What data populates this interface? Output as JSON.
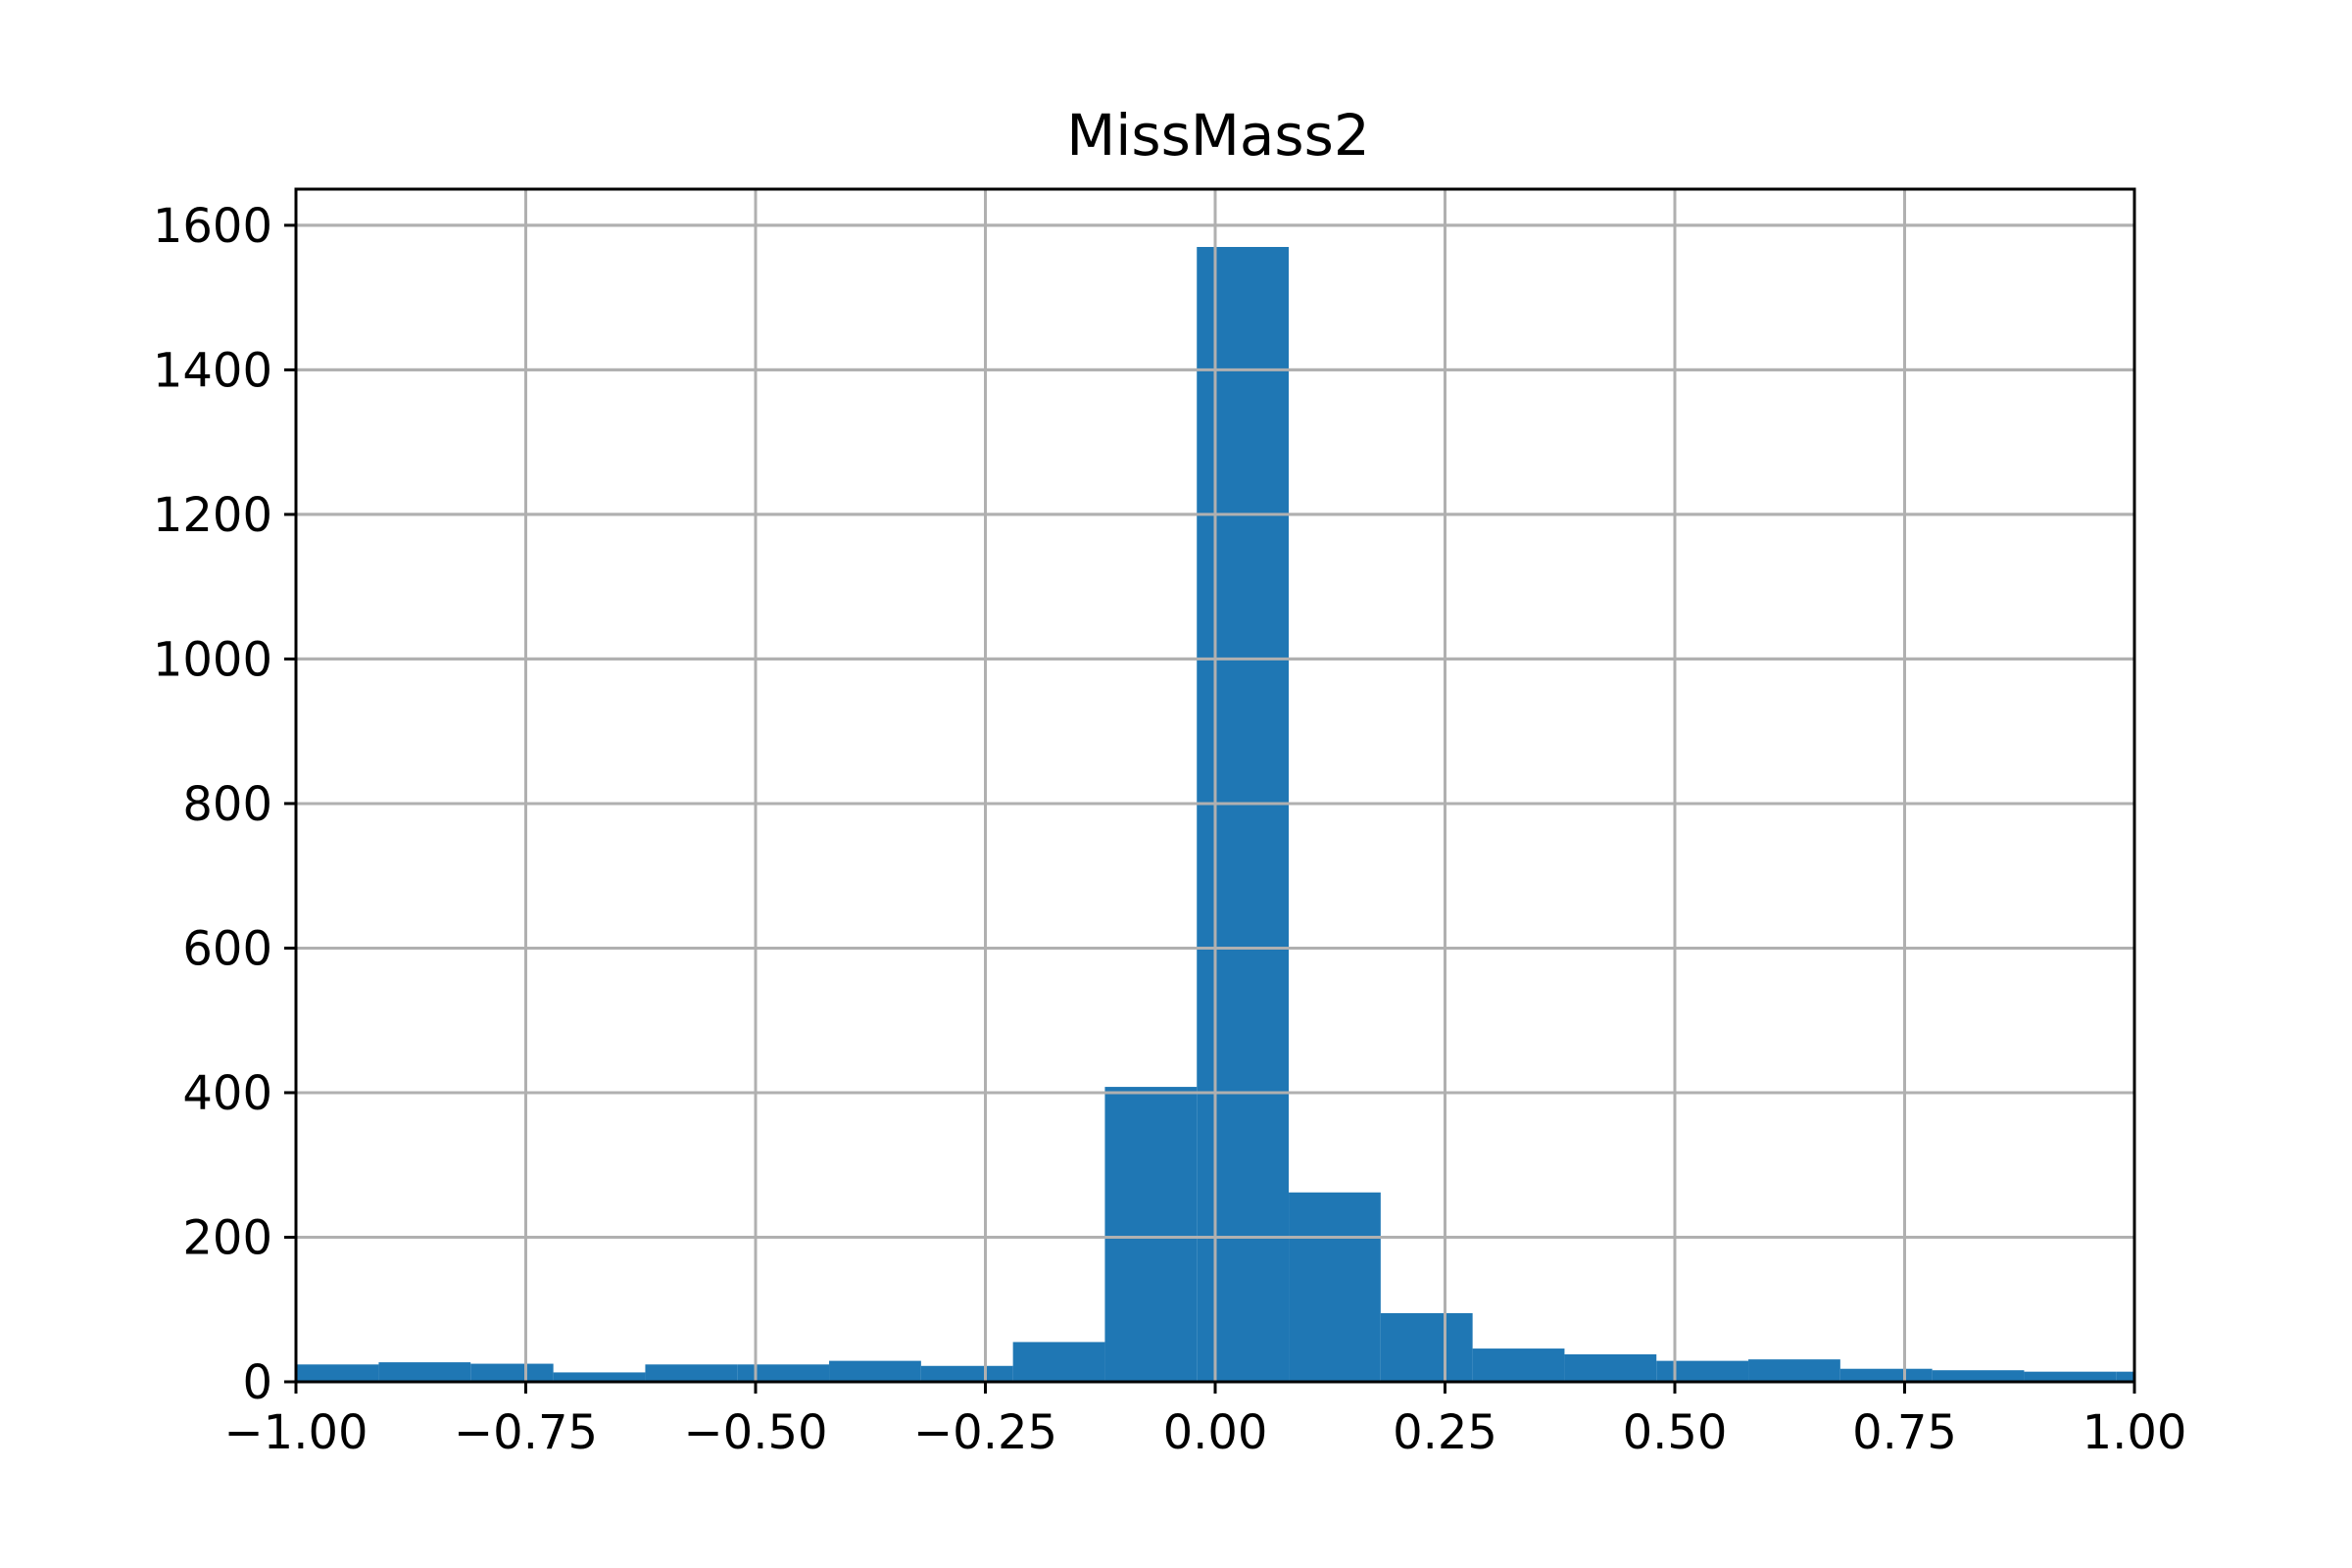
{
  "chart_data": {
    "type": "bar",
    "title": "MissMass2",
    "xlabel": "",
    "ylabel": "",
    "xlim": [
      -1.0,
      1.0
    ],
    "ylim": [
      0,
      1650
    ],
    "grid": true,
    "bar_color": "#1f77b4",
    "x_ticks": [
      -1.0,
      -0.75,
      -0.5,
      -0.25,
      0.0,
      0.25,
      0.5,
      0.75,
      1.0
    ],
    "x_tick_labels": [
      "−1.00",
      "−0.75",
      "−0.50",
      "−0.25",
      "0.00",
      "0.25",
      "0.50",
      "0.75",
      "1.00"
    ],
    "y_ticks": [
      0,
      200,
      400,
      600,
      800,
      1000,
      1200,
      1400,
      1600
    ],
    "y_tick_labels": [
      "0",
      "200",
      "400",
      "600",
      "800",
      "1000",
      "1200",
      "1400",
      "1600"
    ],
    "bins": [
      {
        "x0": -1.0,
        "x1": -0.91,
        "value": 24
      },
      {
        "x0": -0.91,
        "x1": -0.81,
        "value": 27
      },
      {
        "x0": -0.81,
        "x1": -0.72,
        "value": 25
      },
      {
        "x0": -0.72,
        "x1": -0.62,
        "value": 13
      },
      {
        "x0": -0.62,
        "x1": -0.52,
        "value": 24
      },
      {
        "x0": -0.52,
        "x1": -0.42,
        "value": 24
      },
      {
        "x0": -0.42,
        "x1": -0.32,
        "value": 29
      },
      {
        "x0": -0.32,
        "x1": -0.22,
        "value": 22
      },
      {
        "x0": -0.22,
        "x1": -0.12,
        "value": 55
      },
      {
        "x0": -0.12,
        "x1": -0.02,
        "value": 408
      },
      {
        "x0": -0.02,
        "x1": 0.08,
        "value": 1570
      },
      {
        "x0": 0.08,
        "x1": 0.18,
        "value": 262
      },
      {
        "x0": 0.18,
        "x1": 0.28,
        "value": 95
      },
      {
        "x0": 0.28,
        "x1": 0.38,
        "value": 46
      },
      {
        "x0": 0.38,
        "x1": 0.48,
        "value": 38
      },
      {
        "x0": 0.48,
        "x1": 0.58,
        "value": 29
      },
      {
        "x0": 0.58,
        "x1": 0.68,
        "value": 31
      },
      {
        "x0": 0.68,
        "x1": 0.78,
        "value": 18
      },
      {
        "x0": 0.78,
        "x1": 0.88,
        "value": 16
      },
      {
        "x0": 0.88,
        "x1": 0.98,
        "value": 14
      },
      {
        "x0": 0.98,
        "x1": 1.0,
        "value": 14
      }
    ]
  }
}
